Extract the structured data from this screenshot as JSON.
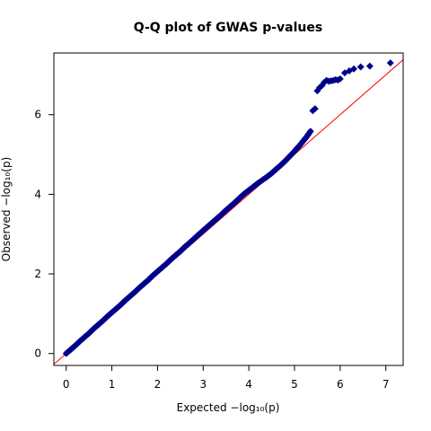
{
  "chart_data": {
    "type": "scatter",
    "title": "Q-Q plot of GWAS p-values",
    "xlabel": "Expected  −log₁₀(p)",
    "ylabel": "Observed  −log₁₀(p)",
    "xlim": [
      -0.27,
      7.38
    ],
    "ylim": [
      -0.3,
      7.55
    ],
    "x_ticks": [
      0,
      1,
      2,
      3,
      4,
      5,
      6,
      7
    ],
    "y_ticks": [
      0,
      2,
      4,
      6
    ],
    "grid": false,
    "legend": "none",
    "reference_line": {
      "x": [
        -0.27,
        7.38
      ],
      "y": [
        -0.27,
        7.38
      ],
      "color": "#ff0000"
    },
    "marker": {
      "shape": "diamond",
      "color": "#00008b"
    },
    "series": [
      {
        "x": [
          0.0,
          0.1,
          0.2,
          0.3,
          0.4,
          0.5,
          0.6,
          0.7,
          0.8,
          0.9,
          1.0,
          1.1,
          1.2,
          1.3,
          1.4,
          1.5,
          1.6,
          1.7,
          1.8,
          1.9,
          2.0,
          2.1,
          2.2,
          2.3,
          2.4,
          2.5,
          2.6,
          2.7,
          2.8,
          2.9,
          3.0,
          3.1,
          3.2,
          3.3,
          3.4,
          3.5,
          3.6,
          3.7,
          3.8,
          3.9,
          4.0,
          4.1,
          4.2,
          4.3,
          4.4,
          4.5,
          4.6,
          4.7,
          4.8,
          4.9,
          5.0,
          5.05,
          5.1,
          5.15,
          5.2,
          5.25,
          5.3,
          5.35,
          5.4,
          5.45,
          5.5,
          5.55,
          5.6,
          5.65,
          5.7,
          5.75,
          5.8,
          5.85,
          5.9,
          5.95,
          6.0,
          6.1,
          6.2,
          6.3,
          6.45,
          6.65,
          7.1
        ],
        "y": [
          0.0,
          0.1,
          0.2,
          0.31,
          0.41,
          0.51,
          0.62,
          0.72,
          0.82,
          0.93,
          1.03,
          1.13,
          1.23,
          1.34,
          1.44,
          1.54,
          1.65,
          1.75,
          1.85,
          1.96,
          2.06,
          2.16,
          2.26,
          2.37,
          2.47,
          2.57,
          2.68,
          2.78,
          2.88,
          2.99,
          3.09,
          3.19,
          3.29,
          3.39,
          3.49,
          3.6,
          3.7,
          3.8,
          3.91,
          4.01,
          4.1,
          4.19,
          4.28,
          4.36,
          4.44,
          4.53,
          4.63,
          4.73,
          4.84,
          4.96,
          5.08,
          5.15,
          5.21,
          5.28,
          5.35,
          5.42,
          5.5,
          5.58,
          6.1,
          6.15,
          6.6,
          6.68,
          6.73,
          6.81,
          6.86,
          6.84,
          6.85,
          6.86,
          6.88,
          6.87,
          6.9,
          7.05,
          7.1,
          7.15,
          7.2,
          7.22,
          7.3
        ]
      }
    ]
  }
}
